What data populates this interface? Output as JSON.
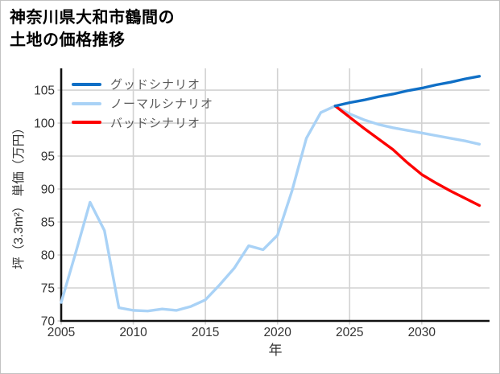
{
  "title": {
    "line1": "神奈川県大和市鶴間の",
    "line2": "土地の価格推移"
  },
  "chart_data": {
    "type": "line",
    "title": "神奈川県大和市鶴間の土地の価格推移",
    "xlabel": "年",
    "ylabel": "坪（3.3m²） 単価（万円）",
    "xlim": [
      2005,
      2034.7
    ],
    "ylim": [
      70,
      108.3
    ],
    "xticks": [
      2005,
      2010,
      2015,
      2020,
      2025,
      2030
    ],
    "yticks": [
      70,
      75,
      80,
      85,
      90,
      95,
      100,
      105
    ],
    "grid": true,
    "legend_position": "upper-left",
    "colors": {
      "grid": "#d2d2d2",
      "spine": "#111111",
      "tick_label": "#333333",
      "legend_text": "#595959"
    },
    "legend": [
      {
        "label": "グッドシナリオ",
        "series": "good"
      },
      {
        "label": "ノーマルシナリオ",
        "series": "normal"
      },
      {
        "label": "バッドシナリオ",
        "series": "bad"
      }
    ],
    "series": [
      {
        "id": "history",
        "color": "#a9d2f6",
        "x": [
          2005,
          2006,
          2007,
          2008,
          2009,
          2010,
          2011,
          2012,
          2013,
          2014,
          2015,
          2016,
          2017,
          2018,
          2019,
          2020,
          2021,
          2022,
          2023,
          2024
        ],
        "y": [
          72.8,
          80.3,
          88.0,
          83.7,
          72.0,
          71.6,
          71.5,
          71.8,
          71.6,
          72.2,
          73.2,
          75.5,
          78.0,
          81.4,
          80.8,
          83.0,
          89.7,
          97.7,
          101.6,
          102.6
        ]
      },
      {
        "id": "normal",
        "color": "#a9d2f6",
        "x": [
          2024,
          2025,
          2026,
          2027,
          2028,
          2029,
          2030,
          2031,
          2032,
          2033,
          2034
        ],
        "y": [
          102.6,
          101.4,
          100.5,
          99.8,
          99.3,
          98.9,
          98.5,
          98.1,
          97.7,
          97.3,
          96.8
        ]
      },
      {
        "id": "bad",
        "color": "#fd0000",
        "x": [
          2024,
          2025,
          2026,
          2027,
          2028,
          2029,
          2030,
          2031,
          2032,
          2033,
          2034
        ],
        "y": [
          102.6,
          100.9,
          99.2,
          97.6,
          96.0,
          94.0,
          92.2,
          90.9,
          89.7,
          88.6,
          87.5
        ]
      },
      {
        "id": "good",
        "color": "#0f6fc6",
        "x": [
          2024,
          2025,
          2026,
          2027,
          2028,
          2029,
          2030,
          2031,
          2032,
          2033,
          2034
        ],
        "y": [
          102.6,
          103.1,
          103.5,
          104.0,
          104.4,
          104.9,
          105.3,
          105.8,
          106.2,
          106.7,
          107.1
        ]
      }
    ]
  }
}
